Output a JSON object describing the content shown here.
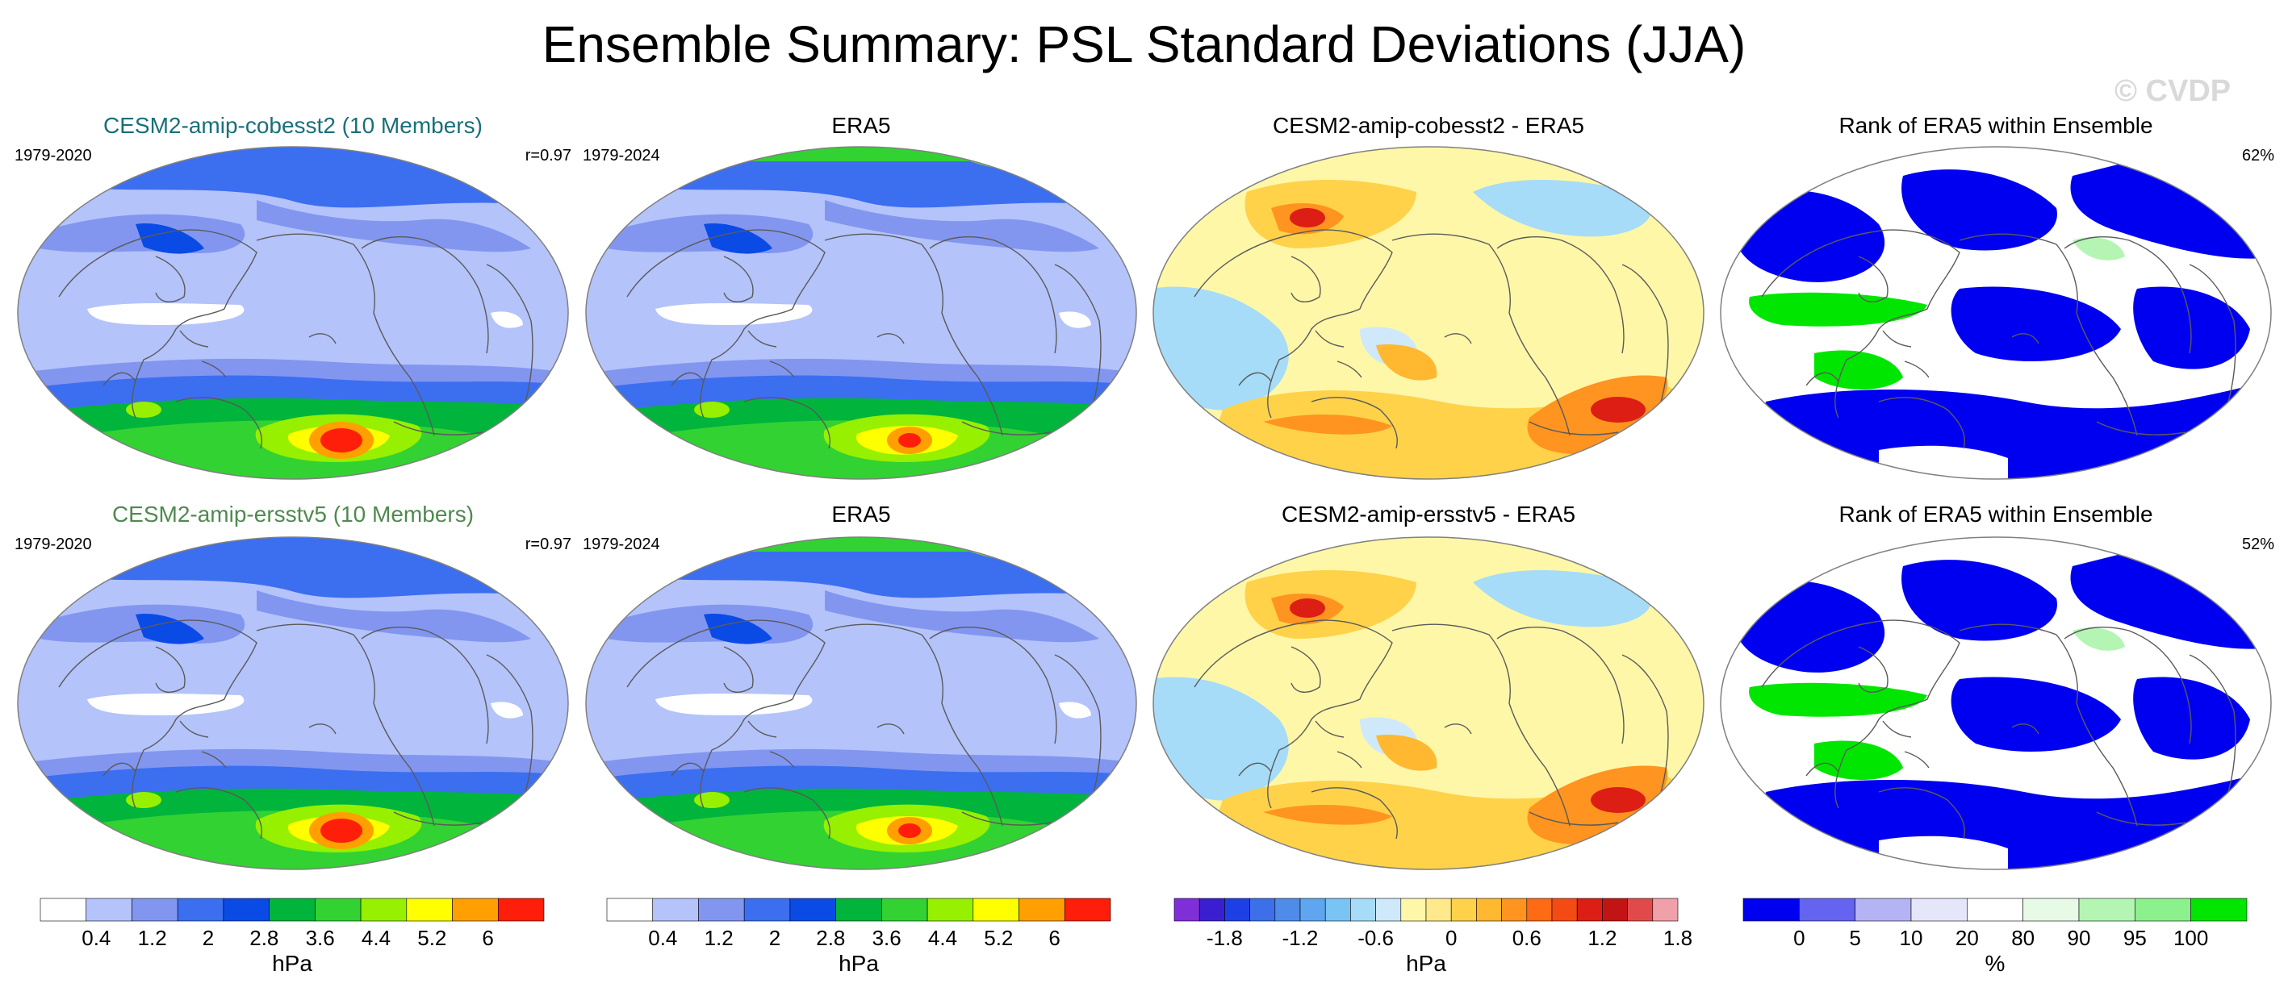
{
  "title": "Ensemble Summary: PSL Standard Deviations (JJA)",
  "watermark": "© CVDP",
  "rows": [
    {
      "panels": [
        {
          "title": "CESM2-amip-cobesst2 (10 Members)",
          "title_color": "#1a6f7a",
          "left": "1979-2020",
          "right": "r=0.97",
          "kind": "std"
        },
        {
          "title": "ERA5",
          "title_color": "#000000",
          "left": "1979-2024",
          "right": "",
          "kind": "std"
        },
        {
          "title": "CESM2-amip-cobesst2 - ERA5",
          "title_color": "#000000",
          "left": "",
          "right": "",
          "kind": "diff"
        },
        {
          "title": "Rank of ERA5 within Ensemble",
          "title_color": "#000000",
          "left": "",
          "right": "62%",
          "kind": "rank"
        }
      ]
    },
    {
      "panels": [
        {
          "title": "CESM2-amip-ersstv5 (10 Members)",
          "title_color": "#4f8a4f",
          "left": "1979-2020",
          "right": "r=0.97",
          "kind": "std"
        },
        {
          "title": "ERA5",
          "title_color": "#000000",
          "left": "1979-2024",
          "right": "",
          "kind": "std"
        },
        {
          "title": "CESM2-amip-ersstv5 - ERA5",
          "title_color": "#000000",
          "left": "",
          "right": "",
          "kind": "diff"
        },
        {
          "title": "Rank of ERA5 within Ensemble",
          "title_color": "#000000",
          "left": "",
          "right": "52%",
          "kind": "rank"
        }
      ]
    }
  ],
  "colorbars": [
    {
      "id": "std1",
      "unit": "hPa",
      "colors": [
        "#ffffff",
        "#b4c3fa",
        "#8296f0",
        "#3c6ef0",
        "#0a4be6",
        "#00b43c",
        "#32d232",
        "#96f000",
        "#ffff00",
        "#ffa000",
        "#ff1e0a"
      ],
      "labels": [
        "0.4",
        "1.2",
        "2",
        "2.8",
        "3.6",
        "4.4",
        "5.2",
        "6"
      ]
    },
    {
      "id": "std2",
      "unit": "hPa",
      "colors": [
        "#ffffff",
        "#b4c3fa",
        "#8296f0",
        "#3c6ef0",
        "#0a4be6",
        "#00b43c",
        "#32d232",
        "#96f000",
        "#ffff00",
        "#ffa000",
        "#ff1e0a"
      ],
      "labels": [
        "0.4",
        "1.2",
        "2",
        "2.8",
        "3.6",
        "4.4",
        "5.2",
        "6"
      ]
    },
    {
      "id": "diff",
      "unit": "hPa",
      "colors": [
        "#7f2fd8",
        "#3a1fd0",
        "#1f3fe6",
        "#3d6fe8",
        "#4f8be8",
        "#5fa5f0",
        "#7ac3f5",
        "#a6dcf7",
        "#cfe9fa",
        "#fff7a8",
        "#ffe98a",
        "#ffd24a",
        "#ffb830",
        "#ff9420",
        "#ff6a14",
        "#f44a14",
        "#dc1e14",
        "#c21414",
        "#e04a4a",
        "#f0a0a8"
      ],
      "labels": [
        "-1.8",
        "-1.2",
        "-0.6",
        "0",
        "0.6",
        "1.2",
        "1.8"
      ]
    },
    {
      "id": "rank",
      "unit": "%",
      "colors": [
        "#0000f0",
        "#6464f0",
        "#b4b4f5",
        "#e6e6fa",
        "#ffffff",
        "#e6fae6",
        "#b4f5b4",
        "#8cf08c",
        "#00e600"
      ],
      "labels": [
        "0",
        "5",
        "10",
        "20",
        "80",
        "90",
        "95",
        "100"
      ]
    }
  ]
}
